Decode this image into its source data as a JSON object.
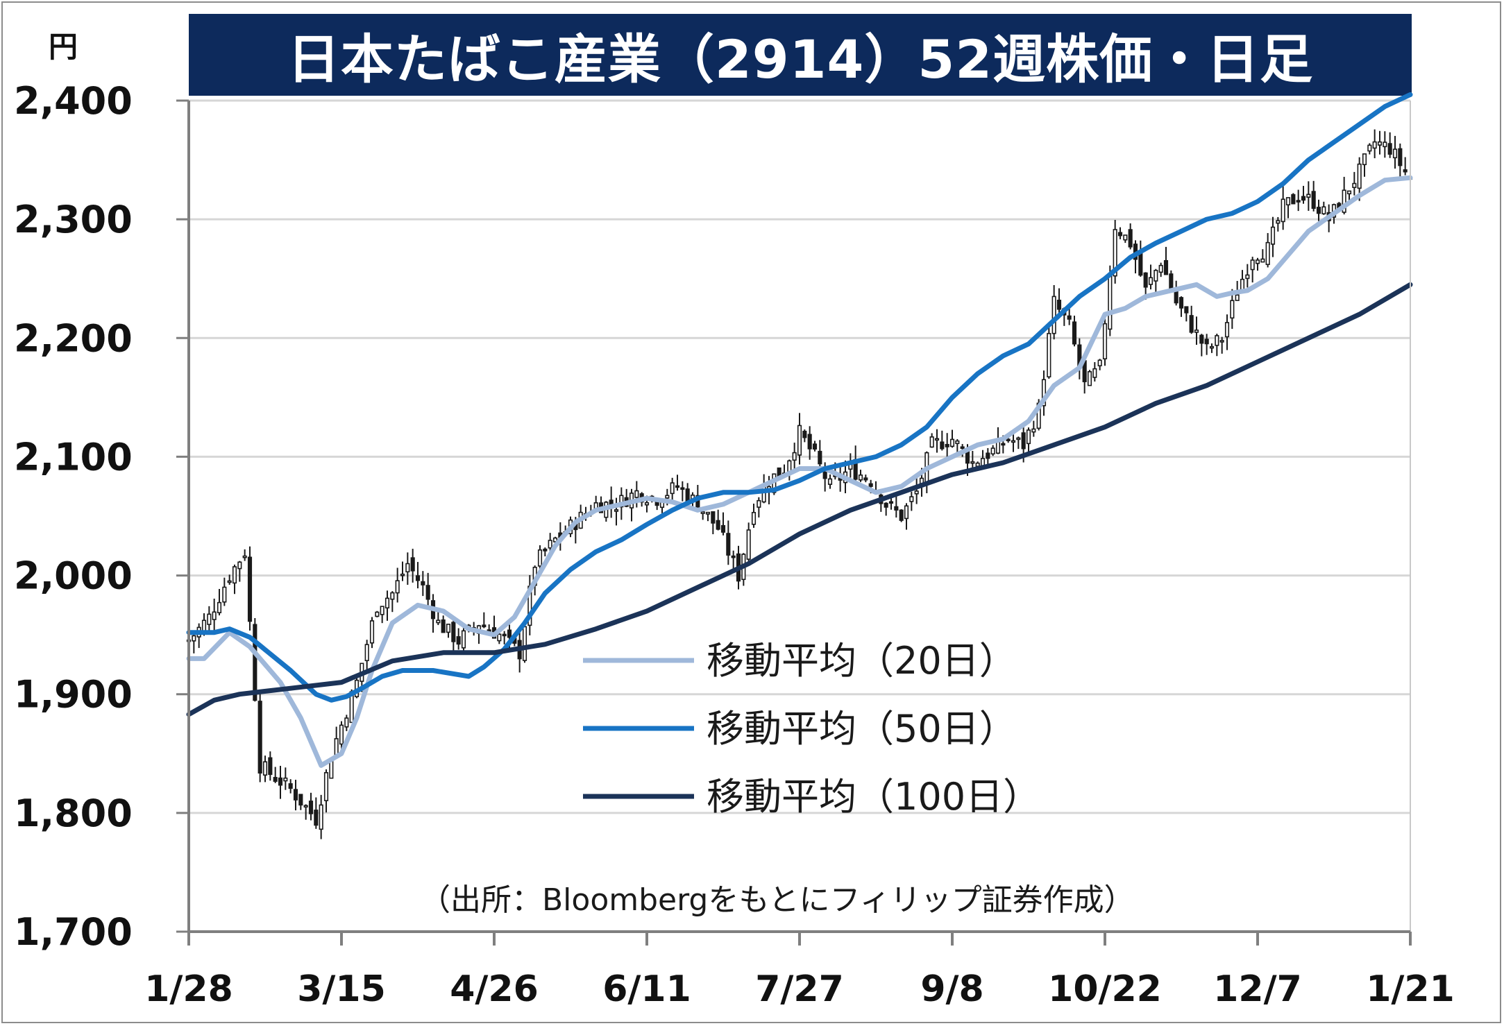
{
  "title": "日本たばこ産業（2914）52週株価・日足",
  "unit": "円",
  "source": "（出所：Bloombergをもとにフィリップ証券作成）",
  "colors": {
    "title_bg": "#0d2a5c",
    "candle": "#1a1a1a",
    "ma20": "#9fb8da",
    "ma50": "#1874c4",
    "ma100": "#1b3358",
    "grid": "#d6d6d6"
  },
  "chart_data": {
    "type": "candlestick",
    "ylim": [
      1700,
      2400
    ],
    "yticks": [
      1700,
      1800,
      1900,
      2000,
      2100,
      2200,
      2300,
      2400
    ],
    "ytick_labels": [
      "1,700",
      "1,800",
      "1,900",
      "2,000",
      "2,100",
      "2,200",
      "2,300",
      "2,400"
    ],
    "xtick_labels": [
      "1/28",
      "3/15",
      "4/26",
      "6/11",
      "7/27",
      "9/8",
      "10/22",
      "12/7",
      "1/21"
    ],
    "grid": true,
    "close_anchors": [
      {
        "d": 0,
        "v": 1945
      },
      {
        "d": 4,
        "v": 1965
      },
      {
        "d": 8,
        "v": 2000
      },
      {
        "d": 11,
        "v": 2020
      },
      {
        "d": 14,
        "v": 1840
      },
      {
        "d": 20,
        "v": 1820
      },
      {
        "d": 25,
        "v": 1795
      },
      {
        "d": 28,
        "v": 1850
      },
      {
        "d": 33,
        "v": 1910
      },
      {
        "d": 37,
        "v": 1975
      },
      {
        "d": 40,
        "v": 1985
      },
      {
        "d": 43,
        "v": 2010
      },
      {
        "d": 46,
        "v": 1990
      },
      {
        "d": 49,
        "v": 1960
      },
      {
        "d": 53,
        "v": 1945
      },
      {
        "d": 57,
        "v": 1960
      },
      {
        "d": 61,
        "v": 1950
      },
      {
        "d": 65,
        "v": 1935
      },
      {
        "d": 68,
        "v": 2010
      },
      {
        "d": 72,
        "v": 2030
      },
      {
        "d": 76,
        "v": 2045
      },
      {
        "d": 80,
        "v": 2060
      },
      {
        "d": 84,
        "v": 2060
      },
      {
        "d": 88,
        "v": 2070
      },
      {
        "d": 92,
        "v": 2065
      },
      {
        "d": 96,
        "v": 2075
      },
      {
        "d": 100,
        "v": 2060
      },
      {
        "d": 104,
        "v": 2040
      },
      {
        "d": 108,
        "v": 2000
      },
      {
        "d": 111,
        "v": 2060
      },
      {
        "d": 114,
        "v": 2080
      },
      {
        "d": 117,
        "v": 2090
      },
      {
        "d": 120,
        "v": 2120
      },
      {
        "d": 123,
        "v": 2100
      },
      {
        "d": 126,
        "v": 2075
      },
      {
        "d": 130,
        "v": 2090
      },
      {
        "d": 134,
        "v": 2080
      },
      {
        "d": 137,
        "v": 2060
      },
      {
        "d": 140,
        "v": 2050
      },
      {
        "d": 143,
        "v": 2070
      },
      {
        "d": 146,
        "v": 2110
      },
      {
        "d": 150,
        "v": 2115
      },
      {
        "d": 154,
        "v": 2095
      },
      {
        "d": 158,
        "v": 2105
      },
      {
        "d": 161,
        "v": 2115
      },
      {
        "d": 164,
        "v": 2110
      },
      {
        "d": 167,
        "v": 2140
      },
      {
        "d": 170,
        "v": 2230
      },
      {
        "d": 173,
        "v": 2210
      },
      {
        "d": 176,
        "v": 2160
      },
      {
        "d": 179,
        "v": 2175
      },
      {
        "d": 182,
        "v": 2295
      },
      {
        "d": 185,
        "v": 2280
      },
      {
        "d": 188,
        "v": 2240
      },
      {
        "d": 191,
        "v": 2265
      },
      {
        "d": 194,
        "v": 2230
      },
      {
        "d": 197,
        "v": 2210
      },
      {
        "d": 200,
        "v": 2190
      },
      {
        "d": 203,
        "v": 2200
      },
      {
        "d": 206,
        "v": 2240
      },
      {
        "d": 209,
        "v": 2270
      },
      {
        "d": 212,
        "v": 2275
      },
      {
        "d": 215,
        "v": 2310
      },
      {
        "d": 218,
        "v": 2320
      },
      {
        "d": 221,
        "v": 2315
      },
      {
        "d": 224,
        "v": 2300
      },
      {
        "d": 227,
        "v": 2320
      },
      {
        "d": 230,
        "v": 2340
      },
      {
        "d": 233,
        "v": 2365
      },
      {
        "d": 236,
        "v": 2360
      },
      {
        "d": 239,
        "v": 2340
      },
      {
        "d": 240,
        "v": 2335
      }
    ],
    "series": [
      {
        "name": "移動平均（20日）",
        "color": "#9fb8da",
        "x": [
          0,
          3,
          8,
          12,
          18,
          22,
          26,
          30,
          33,
          36,
          40,
          45,
          50,
          55,
          60,
          64,
          68,
          72,
          76,
          80,
          85,
          90,
          95,
          100,
          105,
          110,
          115,
          120,
          125,
          130,
          135,
          140,
          145,
          150,
          155,
          160,
          165,
          170,
          175,
          180,
          184,
          188,
          193,
          198,
          202,
          205,
          208,
          212,
          216,
          220,
          225,
          230,
          235,
          240
        ],
        "y": [
          1930,
          1930,
          1952,
          1940,
          1910,
          1880,
          1840,
          1850,
          1880,
          1920,
          1960,
          1975,
          1970,
          1955,
          1950,
          1965,
          1995,
          2025,
          2045,
          2055,
          2060,
          2065,
          2062,
          2055,
          2060,
          2070,
          2080,
          2090,
          2090,
          2080,
          2070,
          2075,
          2090,
          2100,
          2110,
          2115,
          2130,
          2160,
          2175,
          2220,
          2225,
          2235,
          2240,
          2245,
          2235,
          2238,
          2240,
          2250,
          2270,
          2290,
          2305,
          2320,
          2333,
          2335
        ]
      },
      {
        "name": "移動平均（50日）",
        "color": "#1874c4",
        "x": [
          0,
          5,
          8,
          12,
          20,
          25,
          28,
          31,
          34,
          38,
          42,
          48,
          55,
          58,
          62,
          66,
          70,
          75,
          80,
          85,
          90,
          95,
          100,
          105,
          110,
          115,
          120,
          125,
          130,
          135,
          140,
          145,
          150,
          155,
          160,
          165,
          170,
          175,
          180,
          185,
          190,
          195,
          200,
          205,
          210,
          215,
          220,
          225,
          230,
          235,
          240
        ],
        "y": [
          1952,
          1952,
          1955,
          1948,
          1920,
          1900,
          1895,
          1898,
          1905,
          1915,
          1920,
          1920,
          1915,
          1923,
          1938,
          1960,
          1985,
          2005,
          2020,
          2030,
          2043,
          2055,
          2065,
          2070,
          2070,
          2072,
          2080,
          2090,
          2095,
          2100,
          2110,
          2125,
          2150,
          2170,
          2185,
          2195,
          2215,
          2235,
          2250,
          2268,
          2280,
          2290,
          2300,
          2305,
          2315,
          2330,
          2350,
          2365,
          2380,
          2395,
          2405
        ]
      },
      {
        "name": "移動平均（100日）",
        "color": "#1b3358",
        "x": [
          0,
          5,
          10,
          20,
          30,
          40,
          50,
          60,
          70,
          80,
          90,
          100,
          110,
          120,
          130,
          140,
          150,
          160,
          170,
          180,
          190,
          200,
          210,
          220,
          230,
          240
        ],
        "y": [
          1883,
          1895,
          1900,
          1905,
          1910,
          1928,
          1935,
          1935,
          1942,
          1955,
          1970,
          1990,
          2010,
          2035,
          2055,
          2070,
          2085,
          2095,
          2110,
          2125,
          2145,
          2160,
          2180,
          2200,
          2220,
          2245
        ]
      }
    ]
  },
  "legend": [
    {
      "label": "移動平均（20日）",
      "color": "#9fb8da"
    },
    {
      "label": "移動平均（50日）",
      "color": "#1874c4"
    },
    {
      "label": "移動平均（100日）",
      "color": "#1b3358"
    }
  ]
}
